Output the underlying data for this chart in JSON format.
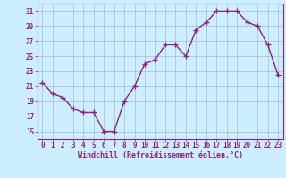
{
  "x": [
    0,
    1,
    2,
    3,
    4,
    5,
    6,
    7,
    8,
    9,
    10,
    11,
    12,
    13,
    14,
    15,
    16,
    17,
    18,
    19,
    20,
    21,
    22,
    23
  ],
  "y": [
    21.5,
    20.0,
    19.5,
    18.0,
    17.5,
    17.5,
    15.0,
    15.0,
    19.0,
    21.0,
    24.0,
    24.5,
    26.5,
    26.5,
    25.0,
    28.5,
    29.5,
    31.0,
    31.0,
    31.0,
    29.5,
    29.0,
    26.5,
    22.5
  ],
  "line_color": "#882288",
  "marker": "+",
  "marker_size": 4,
  "marker_lw": 1.0,
  "bg_color": "#cceeff",
  "grid_color": "#aabbcc",
  "xlabel": "Windchill (Refroidissement éolien,°C)",
  "xlabel_color": "#882288",
  "tick_color": "#882288",
  "spine_color": "#882288",
  "ylim": [
    14,
    32
  ],
  "xlim": [
    -0.5,
    23.5
  ],
  "yticks": [
    15,
    17,
    19,
    21,
    23,
    25,
    27,
    29,
    31
  ],
  "xticks": [
    0,
    1,
    2,
    3,
    4,
    5,
    6,
    7,
    8,
    9,
    10,
    11,
    12,
    13,
    14,
    15,
    16,
    17,
    18,
    19,
    20,
    21,
    22,
    23
  ],
  "line_width": 1.0,
  "tick_fontsize": 5.5,
  "xlabel_fontsize": 6.0
}
